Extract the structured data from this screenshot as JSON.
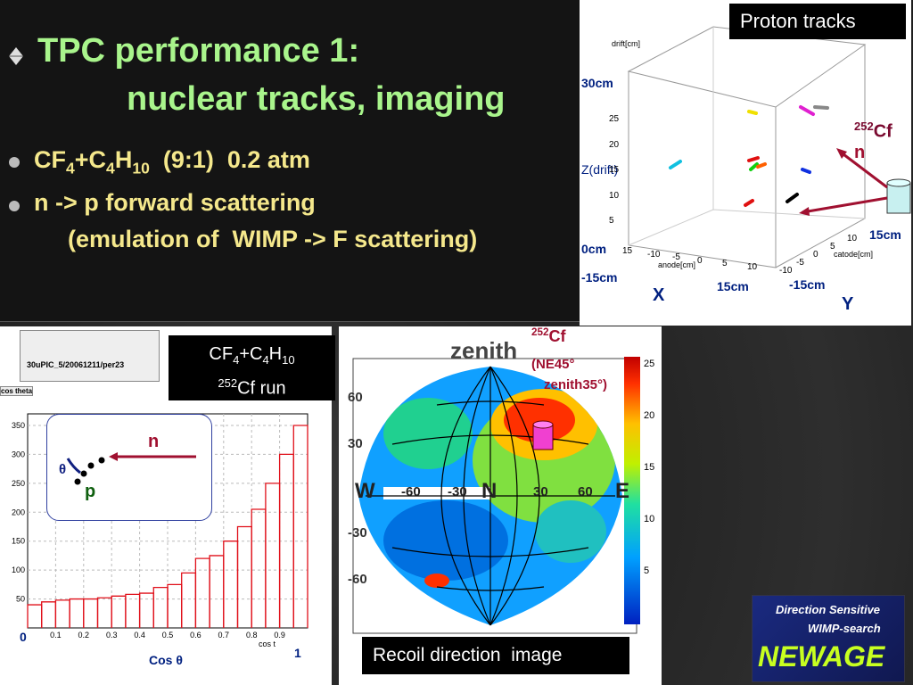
{
  "title": {
    "line1": "TPC performance 1:",
    "line2": "nuclear tracks, imaging"
  },
  "bullets": [
    {
      "parts": [
        "CF",
        "4",
        "+C",
        "4",
        "H",
        "10",
        "  (9:1)  0.2 atm"
      ]
    },
    {
      "line1": "n -> p forward scattering",
      "line2": "(emulation of  WIMP -> F scattering)"
    }
  ],
  "tracks_panel": {
    "label": "Proton tracks",
    "z_title": "drift[cm]",
    "z_ticks": [
      5,
      10,
      15,
      20,
      25
    ],
    "x_ticks": [
      15,
      -10,
      -5,
      0,
      5,
      10
    ],
    "y_ticks": [
      10,
      5,
      0,
      -5,
      -10
    ],
    "x_title": "anode[cm]",
    "y_title": "catode[cm]",
    "annotations": {
      "z_top": "30cm",
      "z_name": "Z(drift)",
      "z_bottom": "0cm",
      "x_left": "-15cm",
      "x_right": "15cm",
      "y_right": "15cm",
      "y_left": "-15cm",
      "x_name": "X",
      "y_name": "Y"
    },
    "source": {
      "mass": "252",
      "element": "Cf",
      "particle": "n"
    }
  },
  "histogram_panel": {
    "run_id": "30uPIC_5/20061211/per23",
    "tab": "cos theta",
    "x_axis_tag": "cos t",
    "x_start": "0",
    "x_end": "1",
    "x_title": "Cos θ",
    "inset": {
      "neutron": "n",
      "angle": "θ",
      "proton": "p"
    },
    "chart_data": {
      "type": "histogram",
      "bins": [
        0,
        0.05,
        0.1,
        0.15,
        0.2,
        0.25,
        0.3,
        0.35,
        0.4,
        0.45,
        0.5,
        0.55,
        0.6,
        0.65,
        0.7,
        0.75,
        0.8,
        0.85,
        0.9,
        0.95,
        1
      ],
      "values": [
        40,
        45,
        48,
        50,
        50,
        52,
        55,
        58,
        60,
        70,
        75,
        95,
        120,
        125,
        150,
        175,
        205,
        250,
        300,
        350
      ],
      "color": "#e0101a",
      "xlim": [
        0,
        1
      ],
      "ylim": [
        0,
        370
      ],
      "xticks": [
        0.1,
        0.2,
        0.3,
        0.4,
        0.5,
        0.6,
        0.7,
        0.8,
        0.9
      ],
      "yticks": [
        50,
        100,
        150,
        200,
        250,
        300,
        350
      ],
      "grid": true
    }
  },
  "run_label": {
    "gas": [
      "CF",
      "4",
      "+C",
      "4",
      "H",
      "10"
    ],
    "source_mass": "252",
    "source_text": "Cf run"
  },
  "skymap": {
    "title": "zenith",
    "lat_labels": [
      "60",
      "30",
      "-30",
      "-60"
    ],
    "lon_labels": [
      "W",
      "-60",
      "-30",
      "N",
      "30",
      "60",
      "E"
    ],
    "colorbar_ticks": [
      5,
      10,
      15,
      20,
      25
    ],
    "source": {
      "mass": "252",
      "element": "Cf",
      "line2": "(NE45°",
      "line3": "zenith35°)"
    },
    "caption": "Recoil direction  image"
  },
  "logo": {
    "line1": "Direction Sensitive",
    "line2": "WIMP-search",
    "name": "NEWAGE"
  }
}
